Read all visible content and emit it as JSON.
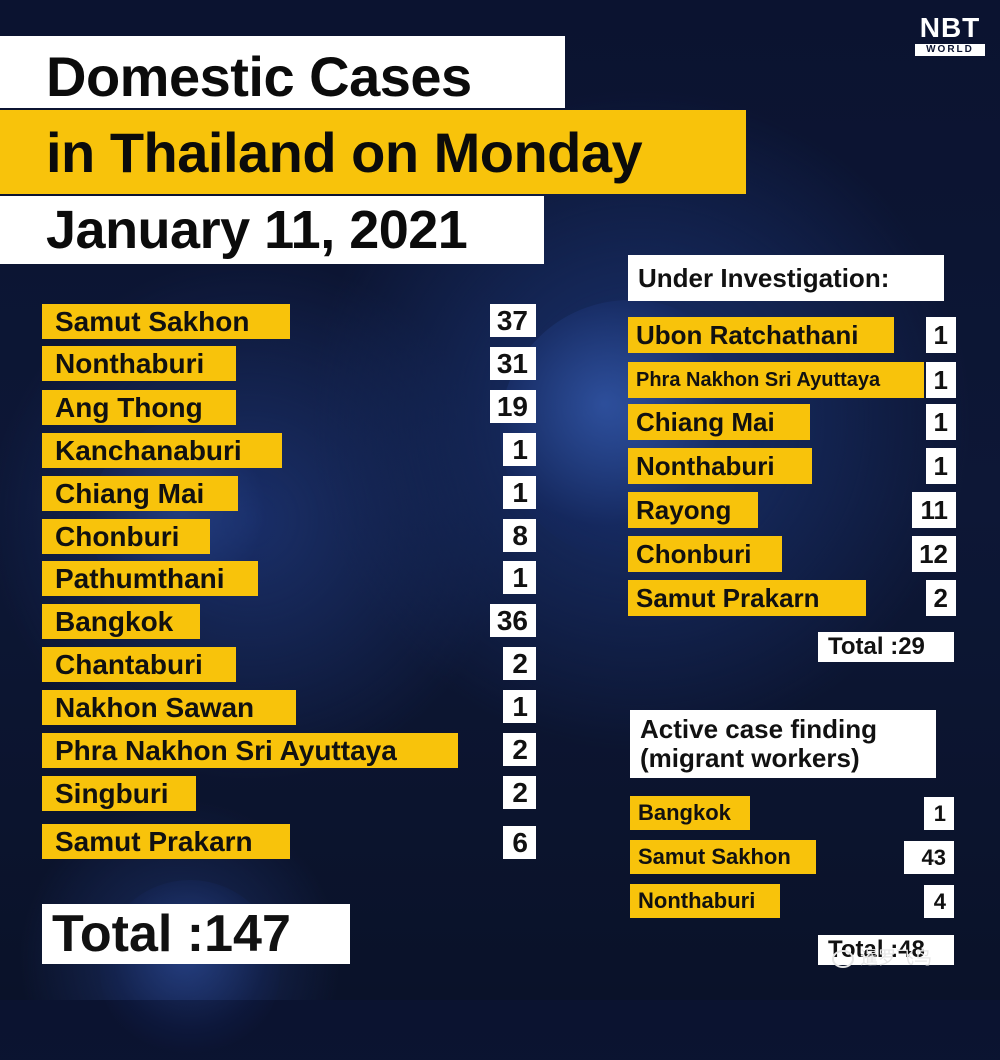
{
  "logo": {
    "brand": "NBT",
    "sub": "WORLD"
  },
  "title": {
    "line1": "Domestic Cases",
    "line2": "in Thailand on Monday",
    "line3": "January 11, 2021"
  },
  "domestic": {
    "rows": [
      {
        "province": "Samut Sakhon",
        "count": "37"
      },
      {
        "province": "Nonthaburi",
        "count": "31"
      },
      {
        "province": "Ang Thong",
        "count": "19"
      },
      {
        "province": "Kanchanaburi",
        "count": "1"
      },
      {
        "province": "Chiang Mai",
        "count": "1"
      },
      {
        "province": "Chonburi",
        "count": "8"
      },
      {
        "province": "Pathumthani",
        "count": "1"
      },
      {
        "province": "Bangkok",
        "count": "36"
      },
      {
        "province": "Chantaburi",
        "count": "2"
      },
      {
        "province": "Nakhon Sawan",
        "count": "1"
      },
      {
        "province": "Phra Nakhon Sri Ayuttaya",
        "count": "2"
      },
      {
        "province": "Singburi",
        "count": "2"
      },
      {
        "province": "Samut Prakarn",
        "count": "6"
      }
    ],
    "total": "Total :147"
  },
  "under_investigation": {
    "heading": "Under Investigation:",
    "rows": [
      {
        "province": "Ubon Ratchathani",
        "count": "1"
      },
      {
        "province": "Phra Nakhon Sri Ayuttaya",
        "count": "1"
      },
      {
        "province": "Chiang Mai",
        "count": "1"
      },
      {
        "province": "Nonthaburi",
        "count": "1"
      },
      {
        "province": "Rayong",
        "count": "11"
      },
      {
        "province": "Chonburi",
        "count": "12"
      },
      {
        "province": "Samut Prakarn",
        "count": "2"
      }
    ],
    "total": "Total :29"
  },
  "active_case_finding": {
    "heading_line1": "Active case finding",
    "heading_line2": "(migrant workers)",
    "rows": [
      {
        "province": "Bangkok",
        "count": "1"
      },
      {
        "province": "Samut Sakhon",
        "count": "43"
      },
      {
        "province": "Nonthaburi",
        "count": "4"
      }
    ],
    "total_partial": "Total :48"
  },
  "watermark": "暹罗飞鸟",
  "colors": {
    "accent": "#f8c30b",
    "background": "#0d1736",
    "box": "#ffffff"
  }
}
